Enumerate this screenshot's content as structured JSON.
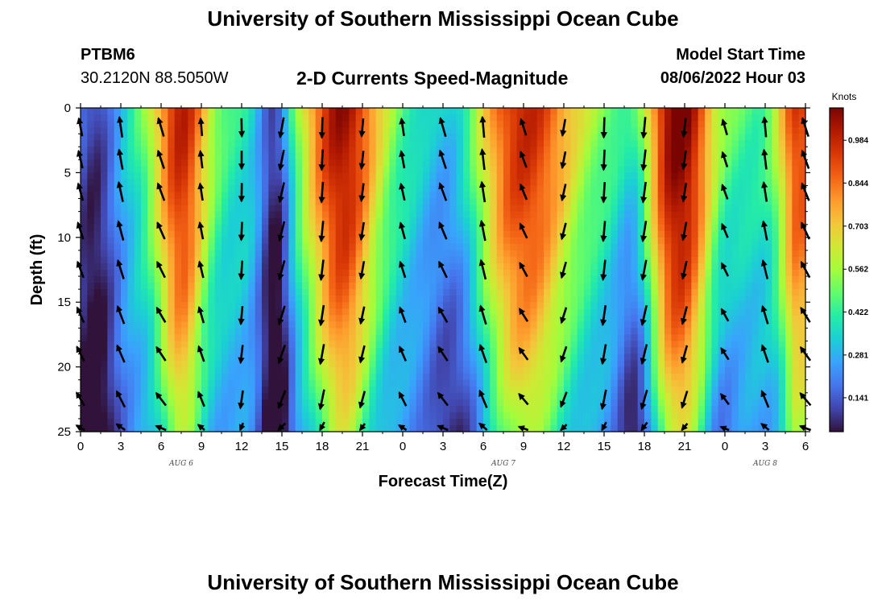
{
  "page": {
    "title_top": "University of Southern Mississippi Ocean Cube",
    "title_bottom": "University of Southern Mississippi Ocean Cube",
    "station_id": "PTBM6",
    "station_coords": "30.2120N  88.5050W",
    "model_start_label": "Model Start Time",
    "model_start_value": "08/06/2022 Hour 03"
  },
  "chart_data": {
    "type": "heatmap",
    "title": "2-D Currents Speed-Magnitude",
    "xlabel": "Forecast Time(Z)",
    "ylabel": "Depth (ft)",
    "x_range_hours": [
      0,
      54
    ],
    "y_range_ft": [
      0,
      25
    ],
    "y_inverted": true,
    "x_tick_labels": [
      "0",
      "3",
      "6",
      "9",
      "12",
      "15",
      "18",
      "21",
      "0",
      "3",
      "6",
      "9",
      "12",
      "15",
      "18",
      "21",
      "0",
      "3",
      "6"
    ],
    "y_tick_labels": [
      "0",
      "5",
      "10",
      "15",
      "20",
      "25"
    ],
    "day_labels": [
      "AUG 6",
      "AUG 7",
      "AUG 8"
    ],
    "colorbar": {
      "unit": "Knots",
      "tick_labels": [
        "0.984",
        "0.844",
        "0.703",
        "0.562",
        "0.422",
        "0.281",
        "0.141"
      ],
      "tick_values": [
        0.984,
        0.844,
        0.703,
        0.562,
        0.422,
        0.281,
        0.141
      ],
      "range": [
        0.03,
        1.09
      ],
      "colors": [
        "#30123b",
        "#4145ab",
        "#4675ed",
        "#39a2fc",
        "#1bcfd4",
        "#24eca6",
        "#61fc6c",
        "#a4fc3b",
        "#d1e834",
        "#f3c63a",
        "#fe9b2d",
        "#f36315",
        "#d93806",
        "#b11901",
        "#7a0402"
      ]
    },
    "speed_ridges_hours": [
      7.5,
      19.5,
      33,
      44.5,
      53.5
    ],
    "speed_troughs_hours": [
      1,
      14.5,
      28,
      41.5,
      47.5
    ],
    "vector_times_hours": [
      0,
      3,
      6,
      9,
      12,
      15,
      18,
      21,
      24,
      27,
      30,
      33,
      36,
      39,
      42,
      45,
      48,
      51,
      54
    ],
    "vector_depths_ft": [
      1.5,
      4,
      6.5,
      9.5,
      12.5,
      16,
      19,
      22.5,
      25
    ]
  }
}
